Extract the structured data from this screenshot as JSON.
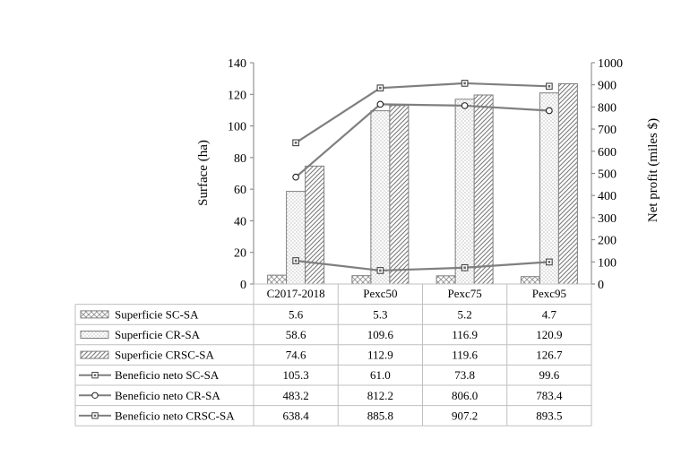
{
  "chart_data": {
    "type": "bar",
    "categories": [
      "C2017-2018",
      "Pexc50",
      "Pexc75",
      "Pexc95"
    ],
    "ylabel_left": "Surface (ha)",
    "ylabel_right": "Net profit (miles $)",
    "ylim_left": [
      0,
      140
    ],
    "yticks_left": [
      "0",
      "20",
      "40",
      "60",
      "80",
      "100",
      "120",
      "140"
    ],
    "ylim_right": [
      0,
      1000
    ],
    "yticks_right": [
      "0",
      "100",
      "200",
      "300",
      "400",
      "500",
      "600",
      "700",
      "800",
      "900",
      "1000"
    ],
    "grid": false,
    "legend": "data-table-below",
    "bar_series": [
      {
        "name": "Superficie SC-SA",
        "values": [
          5.6,
          5.3,
          5.2,
          4.7
        ],
        "pattern": "crosshatch",
        "axis": "left"
      },
      {
        "name": "Superficie CR-SA",
        "values": [
          58.6,
          109.6,
          116.9,
          120.9
        ],
        "pattern": "dots",
        "axis": "left"
      },
      {
        "name": "Superficie CRSC-SA",
        "values": [
          74.6,
          112.9,
          119.6,
          126.7
        ],
        "pattern": "diagonal",
        "axis": "left"
      }
    ],
    "line_series": [
      {
        "name": "Beneficio neto SC-SA",
        "values": [
          105.3,
          61.0,
          73.8,
          99.6
        ],
        "marker": "square",
        "axis": "right"
      },
      {
        "name": "Beneficio neto CR-SA",
        "values": [
          483.2,
          812.2,
          806.0,
          783.4
        ],
        "marker": "circle",
        "axis": "right"
      },
      {
        "name": "Beneficio neto CRSC-SA",
        "values": [
          638.4,
          885.8,
          907.2,
          893.5
        ],
        "marker": "square",
        "axis": "right"
      }
    ],
    "table_rows": [
      {
        "label": "Superficie SC-SA",
        "cells": [
          "5.6",
          "5.3",
          "5.2",
          "4.7"
        ]
      },
      {
        "label": "Superficie CR-SA",
        "cells": [
          "58.6",
          "109.6",
          "116.9",
          "120.9"
        ]
      },
      {
        "label": "Superficie CRSC-SA",
        "cells": [
          "74.6",
          "112.9",
          "119.6",
          "126.7"
        ]
      },
      {
        "label": "Beneficio neto SC-SA",
        "cells": [
          "105.3",
          "61.0",
          "73.8",
          "99.6"
        ]
      },
      {
        "label": "Beneficio neto CR-SA",
        "cells": [
          "483.2",
          "812.2",
          "806.0",
          "783.4"
        ]
      },
      {
        "label": "Beneficio neto CRSC-SA",
        "cells": [
          "638.4",
          "885.8",
          "907.2",
          "893.5"
        ]
      }
    ],
    "colors": {
      "bar_stroke": "#7f7f7f",
      "line": "#7f7f7f",
      "marker_fill": "#ffffff",
      "axis": "#7f7f7f"
    }
  }
}
